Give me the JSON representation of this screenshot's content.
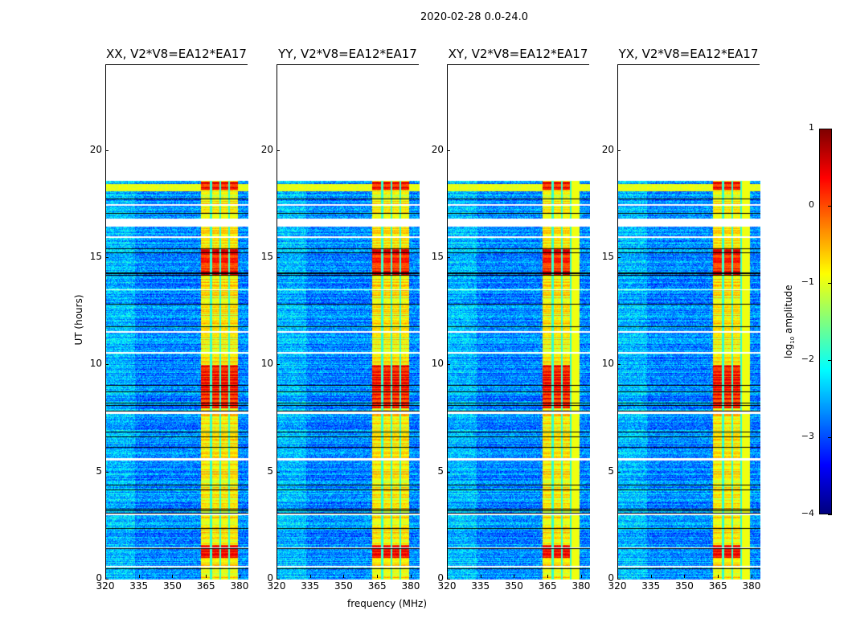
{
  "chart_data": {
    "type": "heatmap",
    "title": "2020-02-28 0.0-24.0",
    "xlabel": "frequency (MHz)",
    "ylabel": "UT (hours)",
    "xlim": [
      320,
      383.6
    ],
    "ylim": [
      0,
      24
    ],
    "xticks": [
      "320",
      "335",
      "350",
      "365",
      "380"
    ],
    "xtick_values": [
      320,
      335,
      350,
      365,
      380
    ],
    "yticks": [
      "0",
      "5",
      "10",
      "15",
      "20"
    ],
    "ytick_values": [
      0,
      5,
      10,
      15,
      20
    ],
    "panels": [
      {
        "title": "XX, V2*V8=EA12*EA17"
      },
      {
        "title": "YY, V2*V8=EA12*EA17"
      },
      {
        "title": "XY, V2*V8=EA12*EA17"
      },
      {
        "title": "YX, V2*V8=EA12*EA17"
      }
    ],
    "data_extent_hours": [
      0,
      18.6
    ],
    "flagged_gaps_hours": [
      [
        0.55,
        0.62
      ],
      [
        1.45,
        1.5
      ],
      [
        3.0,
        3.08
      ],
      [
        5.55,
        5.68
      ],
      [
        7.72,
        7.85
      ],
      [
        10.55,
        10.6
      ],
      [
        11.5,
        11.6
      ],
      [
        13.5,
        13.55
      ],
      [
        15.95,
        16.0
      ],
      [
        16.45,
        16.85
      ],
      [
        17.45,
        17.5
      ],
      [
        18.1,
        18.13
      ]
    ],
    "rfi_band_mhz": [
      362.5,
      379
    ],
    "rfi_separators_mhz": [
      367,
      371,
      375
    ],
    "background_log_amplitude": -2.7,
    "rfi_log_amplitude": -0.8,
    "rfi_strong_hours": [
      [
        8.0,
        10.0
      ],
      [
        14.2,
        15.4
      ],
      [
        18.2,
        18.55
      ],
      [
        1.0,
        1.6
      ]
    ],
    "colorbar": {
      "label": "log10 amplitude",
      "label_main": "log",
      "label_sub": "10",
      "label_rest": " amplitude",
      "clim": [
        -4,
        1
      ],
      "ticks": [
        "1",
        "0",
        "−1",
        "−2",
        "−3",
        "−4"
      ],
      "tick_values": [
        1,
        0,
        -1,
        -2,
        -3,
        -4
      ],
      "colormap": "jet"
    }
  }
}
